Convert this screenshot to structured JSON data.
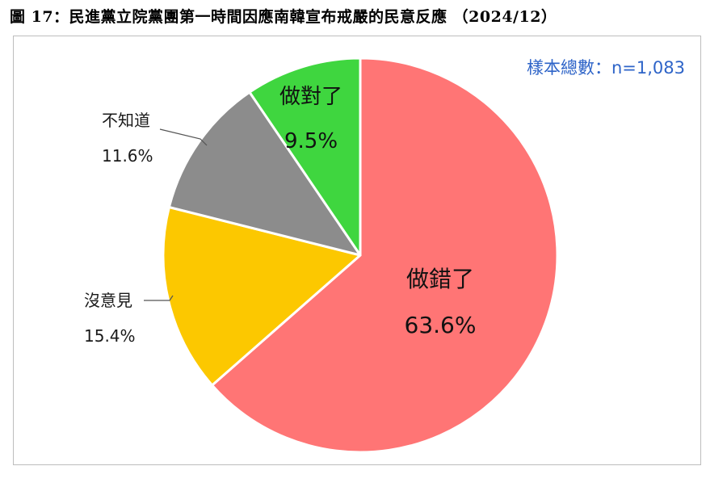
{
  "figure": {
    "title": "圖 17：民進黨立院黨團第一時間因應南韓宣布戒嚴的民意反應 （2024/12）",
    "sample_label": "樣本總數：n=1,083"
  },
  "chart_data": {
    "type": "pie",
    "title": "圖 17：民進黨立院黨團第一時間因應南韓宣布戒嚴的民意反應 （2024/12）",
    "sample_size": "樣本總數：n=1,083",
    "slices": [
      {
        "label": "做錯了",
        "value": 63.6,
        "value_label": "63.6%",
        "color": "#ff7575"
      },
      {
        "label": "沒意見",
        "value": 15.4,
        "value_label": "15.4%",
        "color": "#fcc800"
      },
      {
        "label": "不知道",
        "value": 11.6,
        "value_label": "11.6%",
        "color": "#8c8c8c"
      },
      {
        "label": "做對了",
        "value": 9.5,
        "value_label": "9.5%",
        "color": "#3fd63f"
      }
    ],
    "start_angle": "12 o'clock",
    "direction": "clockwise",
    "legend": "none"
  }
}
